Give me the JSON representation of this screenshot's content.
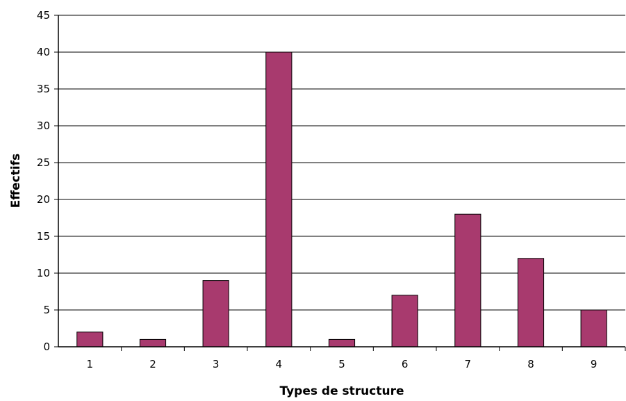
{
  "chart_data": {
    "type": "bar",
    "title": "",
    "xlabel": "Types de structure",
    "ylabel": "Effectifs",
    "categories": [
      "1",
      "2",
      "3",
      "4",
      "5",
      "6",
      "7",
      "8",
      "9"
    ],
    "values": [
      2,
      1,
      9,
      40,
      1,
      7,
      18,
      12,
      5
    ],
    "ylim": [
      0,
      45
    ],
    "yticks": [
      0,
      5,
      10,
      15,
      20,
      25,
      30,
      35,
      40,
      45
    ],
    "grid": "horizontal",
    "bar_color": "#a83a6e",
    "legend": "none"
  }
}
